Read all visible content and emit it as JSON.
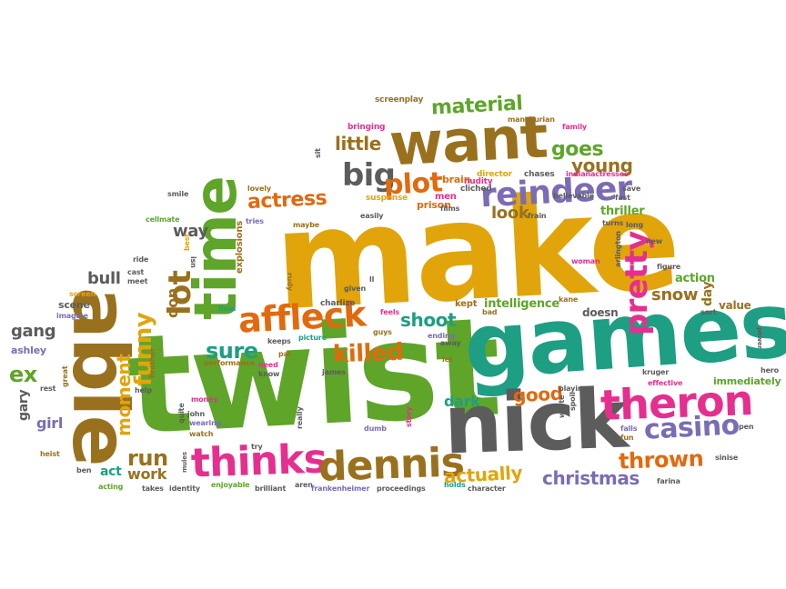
{
  "palette": {
    "orange": "#e2690e",
    "gold": "#e1a50b",
    "green": "#5ea52a",
    "teal": "#1e9e83",
    "gray": "#5c5c5c",
    "pink": "#e52f8f",
    "brown": "#99711e",
    "purple": "#7b6cb5"
  },
  "words": [
    {
      "text": "make",
      "color": "gold",
      "size": 150
    },
    {
      "text": "twist",
      "color": "green",
      "size": 150
    },
    {
      "text": "games",
      "color": "teal",
      "size": 100
    },
    {
      "text": "nick",
      "color": "gray",
      "size": 90
    },
    {
      "text": "able",
      "color": "brown",
      "size": 84
    },
    {
      "text": "want",
      "color": "brown",
      "size": 64
    },
    {
      "text": "time",
      "color": "green",
      "size": 64
    },
    {
      "text": "theron",
      "color": "pink",
      "size": 46
    },
    {
      "text": "thinks",
      "color": "pink",
      "size": 44
    },
    {
      "text": "dennis",
      "color": "brown",
      "size": 44
    },
    {
      "text": "affleck",
      "color": "orange",
      "size": 38
    },
    {
      "text": "reindeer",
      "color": "purple",
      "size": 36
    },
    {
      "text": "lot",
      "color": "brown",
      "size": 34
    },
    {
      "text": "pretty",
      "color": "pink",
      "size": 34
    },
    {
      "text": "big",
      "color": "gray",
      "size": 34
    },
    {
      "text": "plot",
      "color": "orange",
      "size": 30
    },
    {
      "text": "casino",
      "color": "purple",
      "size": 30
    },
    {
      "text": "funny",
      "color": "gold",
      "size": 26
    },
    {
      "text": "killed",
      "color": "orange",
      "size": 26
    },
    {
      "text": "sure",
      "color": "teal",
      "size": 24
    },
    {
      "text": "thrown",
      "color": "orange",
      "size": 24
    },
    {
      "text": "ex",
      "color": "green",
      "size": 24
    },
    {
      "text": "actress",
      "color": "orange",
      "size": 22
    },
    {
      "text": "material",
      "color": "green",
      "size": 22
    },
    {
      "text": "goes",
      "color": "green",
      "size": 22
    },
    {
      "text": "young",
      "color": "brown",
      "size": 20
    },
    {
      "text": "little",
      "color": "brown",
      "size": 20
    },
    {
      "text": "run",
      "color": "brown",
      "size": 24
    },
    {
      "text": "moment",
      "color": "gold",
      "size": 20
    },
    {
      "text": "actually",
      "color": "gold",
      "size": 20
    },
    {
      "text": "christmas",
      "color": "purple",
      "size": 20
    },
    {
      "text": "shoot",
      "color": "teal",
      "size": 20
    },
    {
      "text": "good",
      "color": "orange",
      "size": 20
    },
    {
      "text": "snow",
      "color": "brown",
      "size": 18
    },
    {
      "text": "look",
      "color": "brown",
      "size": 18
    },
    {
      "text": "way",
      "color": "gray",
      "size": 18
    },
    {
      "text": "bull",
      "color": "gray",
      "size": 18
    },
    {
      "text": "gang",
      "color": "gray",
      "size": 18
    },
    {
      "text": "dark",
      "color": "teal",
      "size": 16
    },
    {
      "text": "work",
      "color": "brown",
      "size": 16
    },
    {
      "text": "girl",
      "color": "purple",
      "size": 16
    },
    {
      "text": "don",
      "color": "brown",
      "size": 16
    },
    {
      "text": "act",
      "color": "teal",
      "size": 14
    },
    {
      "text": "gary",
      "color": "gray",
      "size": 14
    },
    {
      "text": "intelligence",
      "color": "green",
      "size": 13
    },
    {
      "text": "thriller",
      "color": "green",
      "size": 13
    },
    {
      "text": "action",
      "color": "green",
      "size": 13
    },
    {
      "text": "day",
      "color": "brown",
      "size": 14
    },
    {
      "text": "doesn",
      "color": "gray",
      "size": 12
    },
    {
      "text": "value",
      "color": "brown",
      "size": 12
    },
    {
      "text": "ashley",
      "color": "purple",
      "size": 11
    },
    {
      "text": "scene",
      "color": "gray",
      "size": 11
    },
    {
      "text": "immediately",
      "color": "green",
      "size": 11
    },
    {
      "text": "brain",
      "color": "orange",
      "size": 11
    },
    {
      "text": "prison",
      "color": "orange",
      "size": 11
    },
    {
      "text": "kept",
      "color": "brown",
      "size": 10
    },
    {
      "text": "men",
      "color": "pink",
      "size": 10
    },
    {
      "text": "director",
      "color": "gold",
      "size": 9
    },
    {
      "text": "chases",
      "color": "gray",
      "size": 9
    },
    {
      "text": "screenplay",
      "color": "brown",
      "size": 9
    },
    {
      "text": "bringing",
      "color": "pink",
      "size": 9
    },
    {
      "text": "suspense",
      "color": "gold",
      "size": 9
    },
    {
      "text": "cliched",
      "color": "gray",
      "size": 9
    },
    {
      "text": "nudity",
      "color": "pink",
      "size": 9
    },
    {
      "text": "explosions",
      "color": "brown",
      "size": 10
    },
    {
      "text": "charlize",
      "color": "gray",
      "size": 9
    },
    {
      "text": "picture",
      "color": "teal",
      "size": 8
    },
    {
      "text": "guys",
      "color": "brown",
      "size": 8
    },
    {
      "text": "ending",
      "color": "purple",
      "size": 8
    },
    {
      "text": "bad",
      "color": "brown",
      "size": 8
    },
    {
      "text": "feels",
      "color": "pink",
      "size": 8
    },
    {
      "text": "final",
      "color": "teal",
      "size": 8
    },
    {
      "text": "keeps",
      "color": "gray",
      "size": 8
    },
    {
      "text": "pal",
      "color": "brown",
      "size": 8
    },
    {
      "text": "performance",
      "color": "brown",
      "size": 8
    },
    {
      "text": "need",
      "color": "pink",
      "size": 8
    },
    {
      "text": "know",
      "color": "gray",
      "size": 8
    },
    {
      "text": "james",
      "color": "gray",
      "size": 8
    },
    {
      "text": "money",
      "color": "pink",
      "size": 8
    },
    {
      "text": "john",
      "color": "gray",
      "size": 8
    },
    {
      "text": "wearing",
      "color": "purple",
      "size": 8
    },
    {
      "text": "watch",
      "color": "brown",
      "size": 8
    },
    {
      "text": "really",
      "color": "gray",
      "size": 8
    },
    {
      "text": "try",
      "color": "gray",
      "size": 8
    },
    {
      "text": "story",
      "color": "pink",
      "size": 8
    },
    {
      "text": "dumb",
      "color": "purple",
      "size": 8
    },
    {
      "text": "enjoyable",
      "color": "green",
      "size": 8
    },
    {
      "text": "brilliant",
      "color": "gray",
      "size": 8
    },
    {
      "text": "aren",
      "color": "gray",
      "size": 8
    },
    {
      "text": "frankenheimer",
      "color": "purple",
      "size": 8
    },
    {
      "text": "proceedings",
      "color": "gray",
      "size": 8
    },
    {
      "text": "holds",
      "color": "teal",
      "size": 8
    },
    {
      "text": "character",
      "color": "gray",
      "size": 8
    },
    {
      "text": "takes",
      "color": "gray",
      "size": 8
    },
    {
      "text": "identity",
      "color": "gray",
      "size": 8
    },
    {
      "text": "acting",
      "color": "green",
      "size": 8
    },
    {
      "text": "ben",
      "color": "gray",
      "size": 8
    },
    {
      "text": "heist",
      "color": "brown",
      "size": 8
    },
    {
      "text": "rest",
      "color": "gray",
      "size": 8
    },
    {
      "text": "great",
      "color": "brown",
      "size": 8
    },
    {
      "text": "help",
      "color": "gray",
      "size": 8
    },
    {
      "text": "brother",
      "color": "brown",
      "size": 8
    },
    {
      "text": "quite",
      "color": "gray",
      "size": 8
    },
    {
      "text": "imagine",
      "color": "purple",
      "size": 8
    },
    {
      "text": "screen",
      "color": "gold",
      "size": 8
    },
    {
      "text": "meet",
      "color": "gray",
      "size": 8
    },
    {
      "text": "cast",
      "color": "gray",
      "size": 8
    },
    {
      "text": "ride",
      "color": "gray",
      "size": 8
    },
    {
      "text": "isn",
      "color": "gray",
      "size": 8
    },
    {
      "text": "best",
      "color": "gold",
      "size": 8
    },
    {
      "text": "cellmate",
      "color": "green",
      "size": 8
    },
    {
      "text": "smile",
      "color": "gray",
      "size": 8
    },
    {
      "text": "tries",
      "color": "purple",
      "size": 8
    },
    {
      "text": "lovely",
      "color": "brown",
      "size": 8
    },
    {
      "text": "sit",
      "color": "gray",
      "size": 8
    },
    {
      "text": "maybe",
      "color": "brown",
      "size": 8
    },
    {
      "text": "rudy",
      "color": "brown",
      "size": 8
    },
    {
      "text": "given",
      "color": "gray",
      "size": 8
    },
    {
      "text": "ll",
      "color": "gray",
      "size": 8
    },
    {
      "text": "easily",
      "color": "gray",
      "size": 8
    },
    {
      "text": "films",
      "color": "gray",
      "size": 8
    },
    {
      "text": "frain",
      "color": "gray",
      "size": 8
    },
    {
      "text": "believable",
      "color": "gray",
      "size": 8
    },
    {
      "text": "indianactresses",
      "color": "pink",
      "size": 8
    },
    {
      "text": "manchurian",
      "color": "brown",
      "size": 8
    },
    {
      "text": "family",
      "color": "pink",
      "size": 8
    },
    {
      "text": "save",
      "color": "gray",
      "size": 8
    },
    {
      "text": "fast",
      "color": "gray",
      "size": 8
    },
    {
      "text": "turns",
      "color": "gray",
      "size": 8
    },
    {
      "text": "long",
      "color": "gray",
      "size": 8
    },
    {
      "text": "new",
      "color": "gray",
      "size": 8
    },
    {
      "text": "woman",
      "color": "pink",
      "size": 8
    },
    {
      "text": "arlington",
      "color": "gray",
      "size": 8
    },
    {
      "text": "figure",
      "color": "gray",
      "size": 8
    },
    {
      "text": "sort",
      "color": "gray",
      "size": 8
    },
    {
      "text": "power",
      "color": "gray",
      "size": 7
    },
    {
      "text": "kane",
      "color": "brown",
      "size": 8
    },
    {
      "text": "away",
      "color": "gray",
      "size": 8
    },
    {
      "text": "let",
      "color": "brown",
      "size": 8
    },
    {
      "text": "kruger",
      "color": "gray",
      "size": 8
    },
    {
      "text": "effective",
      "color": "pink",
      "size": 8
    },
    {
      "text": "hero",
      "color": "gray",
      "size": 8
    },
    {
      "text": "playing",
      "color": "gray",
      "size": 8
    },
    {
      "text": "spoil",
      "color": "gray",
      "size": 8
    },
    {
      "text": "wrote",
      "color": "gray",
      "size": 8
    },
    {
      "text": "fun",
      "color": "brown",
      "size": 8
    },
    {
      "text": "falls",
      "color": "purple",
      "size": 8
    },
    {
      "text": "pen",
      "color": "gray",
      "size": 8
    },
    {
      "text": "sinise",
      "color": "gray",
      "size": 8
    },
    {
      "text": "farina",
      "color": "gray",
      "size": 8
    },
    {
      "text": "mules",
      "color": "gray",
      "size": 7
    }
  ]
}
